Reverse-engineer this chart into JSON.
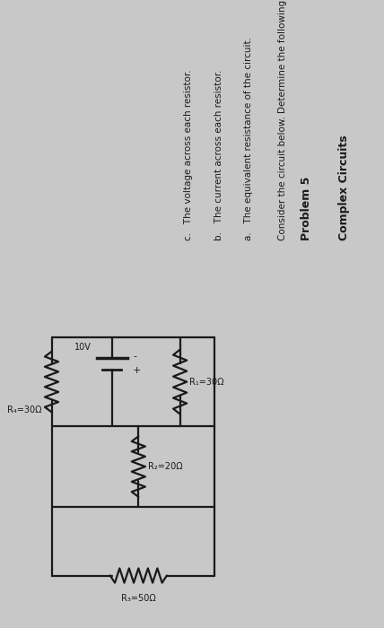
{
  "bg_color": "#c8c8c8",
  "text_color": "#1a1a1a",
  "circuit_color": "#1a1a1a",
  "battery_voltage": "10V",
  "R1_label": "R₁=30Ω",
  "R2_label": "R₂=20Ω",
  "R3_label": "R₃=50Ω",
  "R4_label": "R₄=30Ω",
  "title": "Problem 5",
  "subtitle": "Complex Circuits",
  "description": "Consider the circuit below. Determine the following:",
  "item_a": "a.   The equivalent resistance of the circuit.",
  "item_b": "b.   The current across each resistor.",
  "item_c": "c.   The voltage across each resistor."
}
